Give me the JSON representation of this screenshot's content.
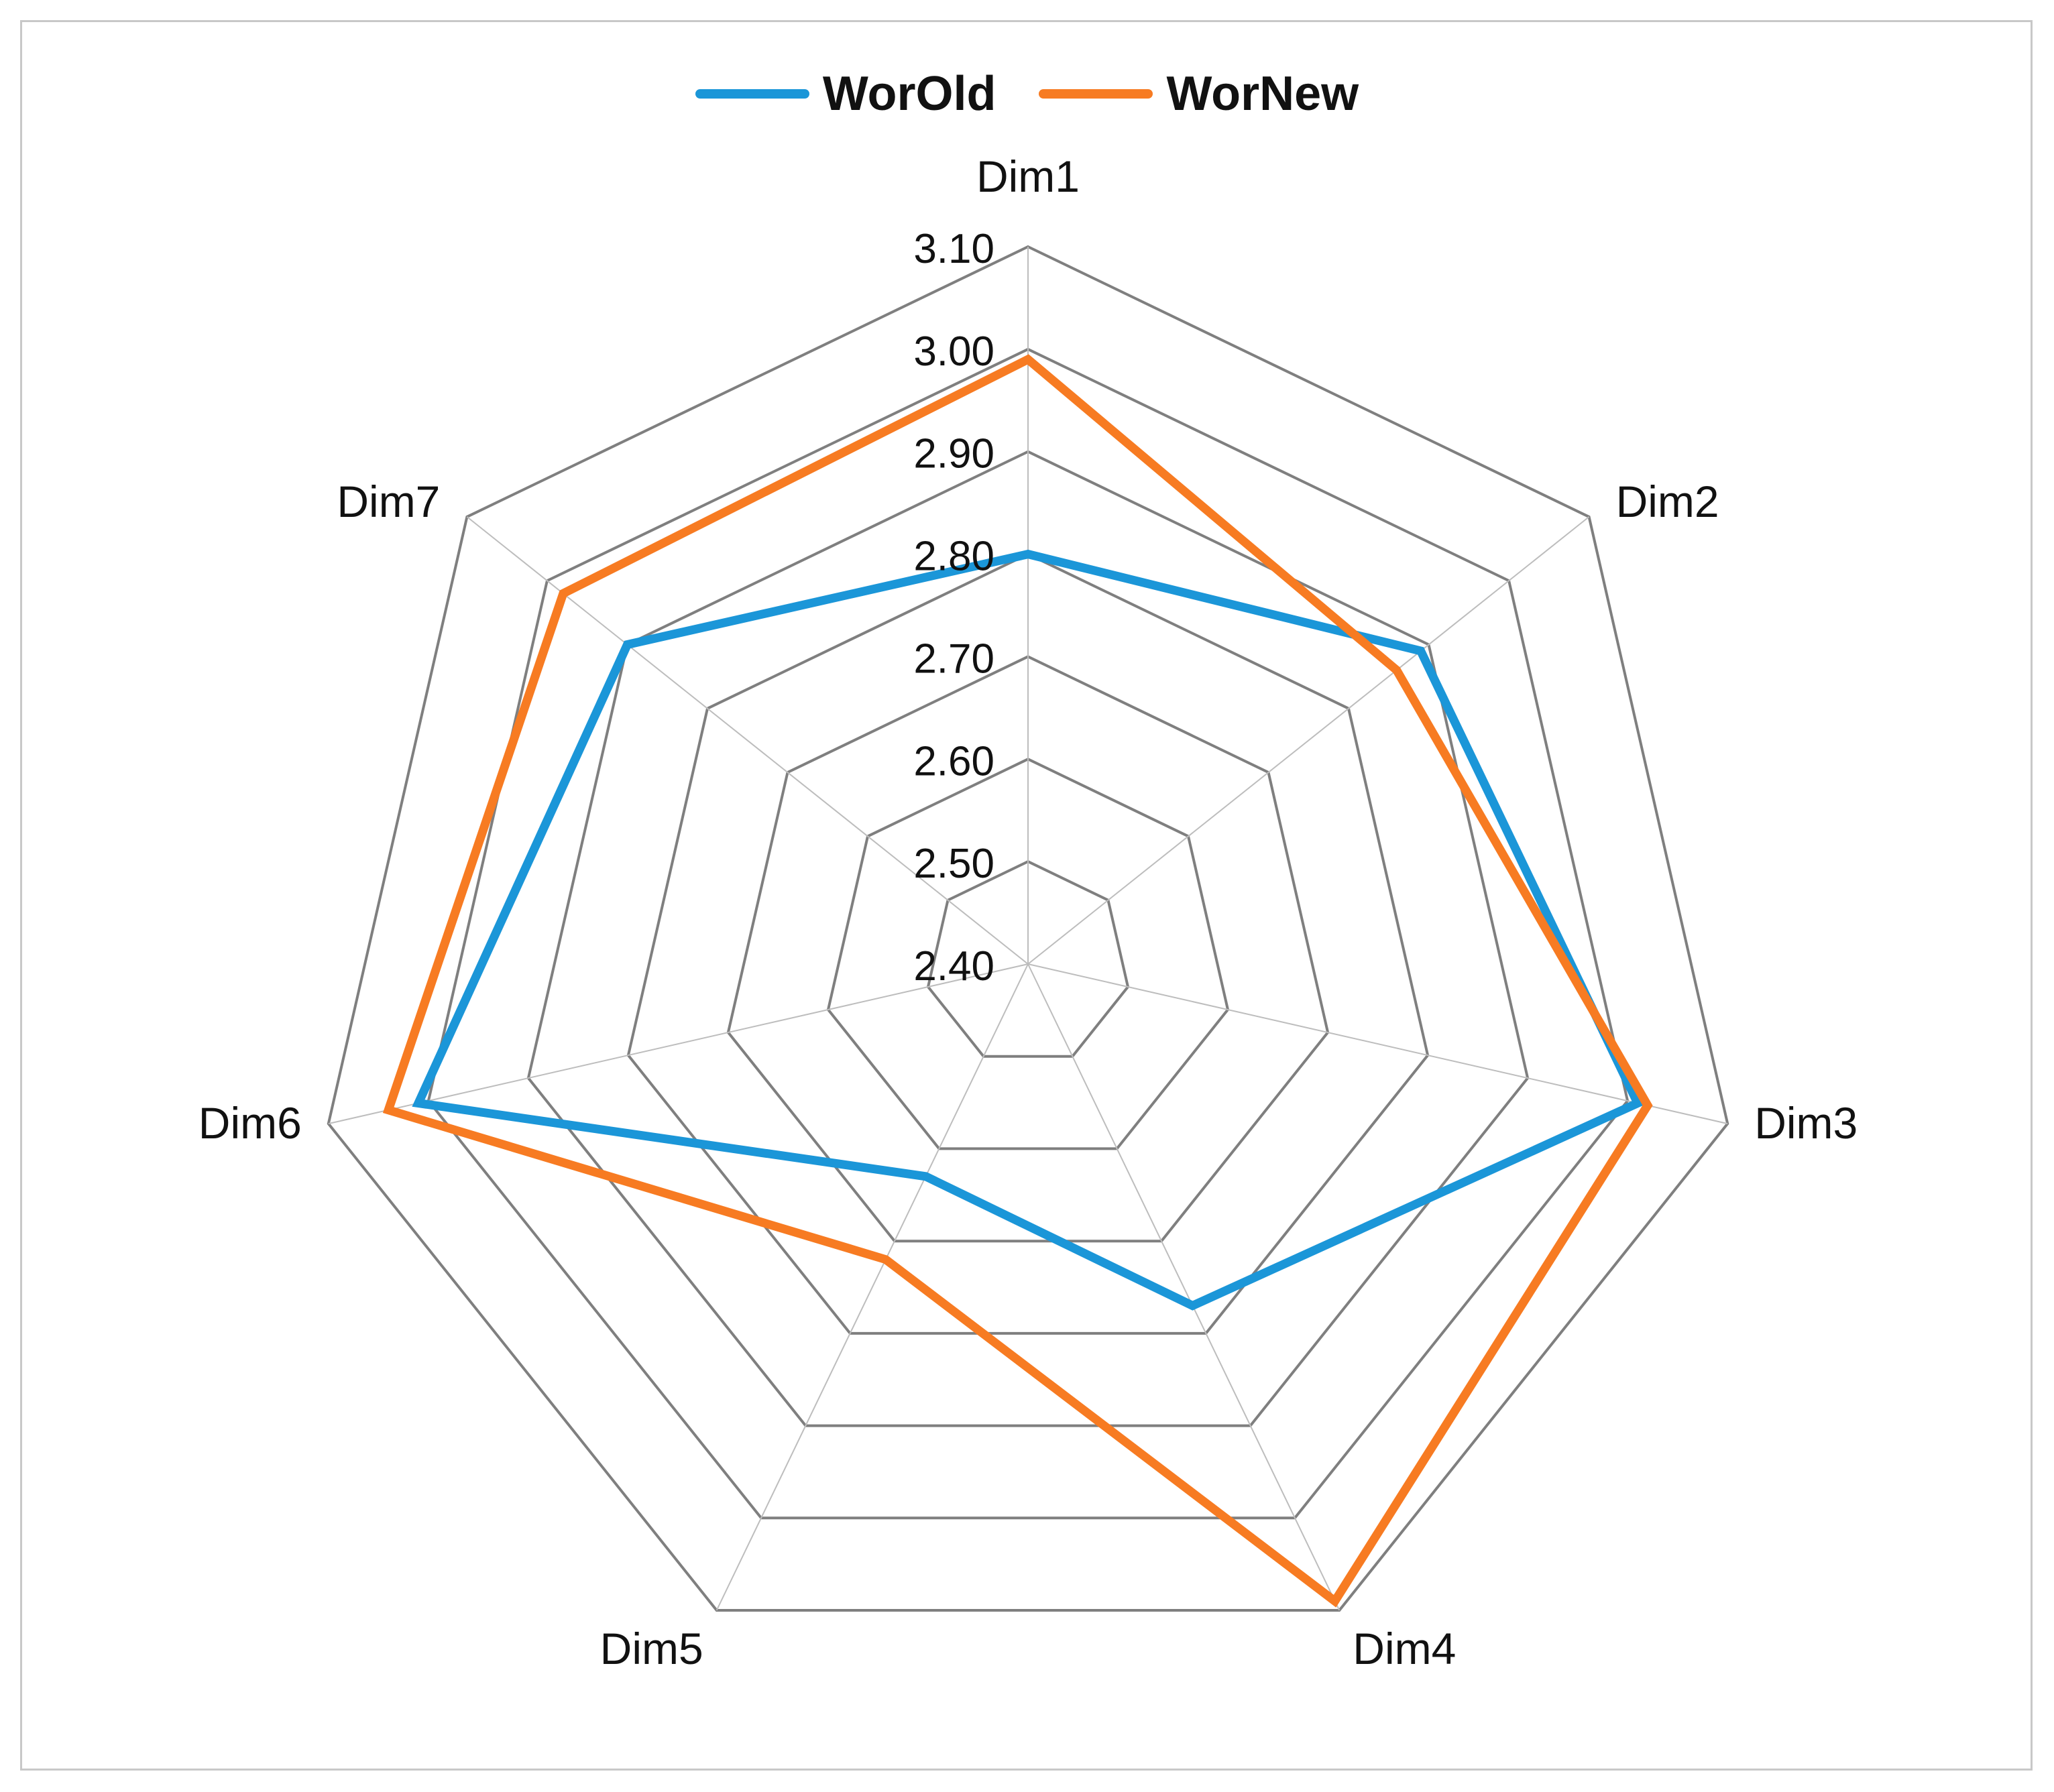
{
  "chart_data": {
    "type": "radar",
    "title": "",
    "axes": [
      "Dim1",
      "Dim2",
      "Dim3",
      "Dim4",
      "Dim5",
      "Dim6",
      "Dim7"
    ],
    "tick_labels": [
      "2.40",
      "2.50",
      "2.60",
      "2.70",
      "2.80",
      "2.90",
      "3.00",
      "3.10"
    ],
    "rlim": [
      2.4,
      3.1
    ],
    "rstep": 0.1,
    "legend_position": "top",
    "series": [
      {
        "name": "WorOld",
        "color": "#1b96d8",
        "values": [
          2.8,
          2.89,
          3.01,
          2.77,
          2.63,
          3.01,
          2.9
        ]
      },
      {
        "name": "WorNew",
        "color": "#f77b22",
        "values": [
          2.99,
          2.86,
          3.02,
          3.09,
          2.72,
          3.04,
          2.98
        ]
      }
    ]
  }
}
